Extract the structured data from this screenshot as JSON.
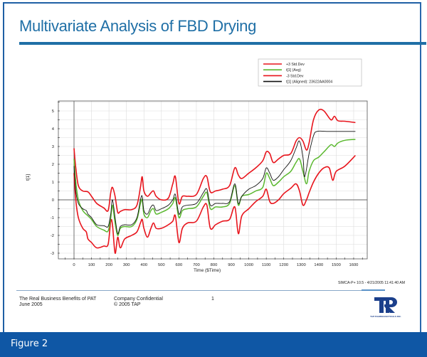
{
  "slide": {
    "title": "Multivariate Analysis of FBD Drying",
    "brand_color": "#1f6fa6"
  },
  "footer": {
    "left_line1": "The Real Business Benefits of PAT",
    "left_line2": "June 2005",
    "mid_line1": "Company Confidential",
    "mid_line2": "© 2005 TAP",
    "page_number": "1",
    "logo_text": "TAP",
    "logo_subtext": "TAP PHARMACEUTICALS INC.",
    "software_stamp": "SIMCA-P+ 10.5 - 4/21/2005 11:41:40 AM"
  },
  "figure_caption": "Figure 2",
  "chart_data": {
    "type": "line",
    "title": "",
    "xlabel": "Time ($Time)",
    "ylabel": "t[1]",
    "xlim": [
      -110,
      1660
    ],
    "ylim": [
      -3.3,
      5.5
    ],
    "xticks": [
      0,
      100,
      200,
      300,
      400,
      500,
      600,
      700,
      800,
      900,
      1000,
      1100,
      1200,
      1300,
      1400,
      1500,
      1600
    ],
    "yticks": [
      -3,
      -2,
      -1,
      0,
      1,
      2,
      3,
      4,
      5
    ],
    "grid": true,
    "legend_position": "top-right",
    "series": [
      {
        "name": "+3 Std.Dev",
        "color": "#e8141c",
        "points": [
          [
            0,
            2.9
          ],
          [
            10,
            1.8
          ],
          [
            25,
            0.8
          ],
          [
            50,
            0.5
          ],
          [
            80,
            0.45
          ],
          [
            100,
            0.2
          ],
          [
            130,
            -0.2
          ],
          [
            170,
            -0.45
          ],
          [
            195,
            -0.6
          ],
          [
            210,
            0.4
          ],
          [
            220,
            0.7
          ],
          [
            235,
            0.2
          ],
          [
            250,
            -0.7
          ],
          [
            265,
            -0.65
          ],
          [
            290,
            -0.55
          ],
          [
            330,
            -0.55
          ],
          [
            360,
            -0.3
          ],
          [
            380,
            0.7
          ],
          [
            390,
            1.3
          ],
          [
            400,
            0.5
          ],
          [
            420,
            0.2
          ],
          [
            440,
            0.4
          ],
          [
            455,
            0.5
          ],
          [
            470,
            0.2
          ],
          [
            500,
            0.0
          ],
          [
            540,
            0.1
          ],
          [
            565,
            0.9
          ],
          [
            580,
            1.3
          ],
          [
            600,
            -0.2
          ],
          [
            620,
            0.2
          ],
          [
            650,
            0.2
          ],
          [
            700,
            0.3
          ],
          [
            740,
            1.2
          ],
          [
            760,
            1.3
          ],
          [
            780,
            0.45
          ],
          [
            810,
            0.5
          ],
          [
            850,
            0.6
          ],
          [
            890,
            0.8
          ],
          [
            920,
            1.8
          ],
          [
            940,
            1.4
          ],
          [
            960,
            1.2
          ],
          [
            1000,
            1.5
          ],
          [
            1040,
            1.8
          ],
          [
            1080,
            2.2
          ],
          [
            1100,
            2.7
          ],
          [
            1120,
            2.6
          ],
          [
            1140,
            2.1
          ],
          [
            1170,
            2.3
          ],
          [
            1200,
            2.5
          ],
          [
            1240,
            2.6
          ],
          [
            1270,
            3.3
          ],
          [
            1290,
            3.5
          ],
          [
            1310,
            3.3
          ],
          [
            1330,
            2.8
          ],
          [
            1345,
            3.2
          ],
          [
            1370,
            4.5
          ],
          [
            1400,
            5.05
          ],
          [
            1430,
            5.0
          ],
          [
            1470,
            4.5
          ],
          [
            1490,
            4.7
          ],
          [
            1510,
            4.45
          ],
          [
            1550,
            4.42
          ],
          [
            1610,
            4.35
          ]
        ]
      },
      {
        "name": "t[1] (Avg)",
        "color": "#5ab82e",
        "points": [
          [
            0,
            2.3
          ],
          [
            10,
            1.0
          ],
          [
            25,
            0.0
          ],
          [
            50,
            -0.6
          ],
          [
            80,
            -0.9
          ],
          [
            100,
            -1.1
          ],
          [
            130,
            -1.5
          ],
          [
            170,
            -1.7
          ],
          [
            195,
            -1.75
          ],
          [
            210,
            -1.0
          ],
          [
            220,
            -0.3
          ],
          [
            235,
            -1.3
          ],
          [
            250,
            -2.0
          ],
          [
            265,
            -1.6
          ],
          [
            290,
            -1.5
          ],
          [
            330,
            -1.5
          ],
          [
            360,
            -1.1
          ],
          [
            380,
            -0.2
          ],
          [
            390,
            0.0
          ],
          [
            400,
            -0.8
          ],
          [
            420,
            -1.0
          ],
          [
            440,
            -0.6
          ],
          [
            455,
            -0.5
          ],
          [
            470,
            -0.8
          ],
          [
            500,
            -0.7
          ],
          [
            540,
            -0.5
          ],
          [
            565,
            -0.2
          ],
          [
            580,
            0.1
          ],
          [
            600,
            -1.0
          ],
          [
            620,
            -0.6
          ],
          [
            650,
            -0.5
          ],
          [
            700,
            -0.4
          ],
          [
            740,
            0.2
          ],
          [
            760,
            0.4
          ],
          [
            780,
            -0.5
          ],
          [
            810,
            -0.4
          ],
          [
            850,
            -0.4
          ],
          [
            890,
            -0.2
          ],
          [
            920,
            0.8
          ],
          [
            940,
            -0.3
          ],
          [
            960,
            0.2
          ],
          [
            1000,
            0.3
          ],
          [
            1040,
            0.5
          ],
          [
            1080,
            0.7
          ],
          [
            1100,
            1.5
          ],
          [
            1120,
            1.2
          ],
          [
            1140,
            0.8
          ],
          [
            1170,
            1.0
          ],
          [
            1200,
            1.3
          ],
          [
            1240,
            1.6
          ],
          [
            1270,
            2.1
          ],
          [
            1290,
            2.3
          ],
          [
            1310,
            1.6
          ],
          [
            1330,
            0.9
          ],
          [
            1345,
            1.6
          ],
          [
            1370,
            2.2
          ],
          [
            1400,
            2.4
          ],
          [
            1430,
            2.7
          ],
          [
            1470,
            3.1
          ],
          [
            1490,
            3.0
          ],
          [
            1510,
            3.2
          ],
          [
            1550,
            3.35
          ],
          [
            1610,
            3.4
          ]
        ]
      },
      {
        "name": "-3 Std.Dev",
        "color": "#e8141c",
        "points": [
          [
            0,
            1.5
          ],
          [
            10,
            0.0
          ],
          [
            25,
            -1.0
          ],
          [
            50,
            -1.6
          ],
          [
            70,
            -1.8
          ],
          [
            80,
            -2.2
          ],
          [
            100,
            -2.4
          ],
          [
            130,
            -2.7
          ],
          [
            170,
            -2.6
          ],
          [
            195,
            -2.5
          ],
          [
            210,
            -1.2
          ],
          [
            220,
            -1.4
          ],
          [
            235,
            -3.0
          ],
          [
            250,
            -2.1
          ],
          [
            265,
            -2.7
          ],
          [
            290,
            -2.2
          ],
          [
            330,
            -2.0
          ],
          [
            360,
            -1.8
          ],
          [
            380,
            -1.3
          ],
          [
            390,
            -1.1
          ],
          [
            400,
            -1.6
          ],
          [
            420,
            -2.1
          ],
          [
            440,
            -1.6
          ],
          [
            455,
            -1.3
          ],
          [
            470,
            -1.6
          ],
          [
            500,
            -1.6
          ],
          [
            540,
            -1.4
          ],
          [
            565,
            -1.2
          ],
          [
            580,
            -0.9
          ],
          [
            600,
            -2.4
          ],
          [
            620,
            -1.6
          ],
          [
            650,
            -1.3
          ],
          [
            700,
            -1.2
          ],
          [
            740,
            -0.4
          ],
          [
            760,
            -0.3
          ],
          [
            780,
            -1.6
          ],
          [
            810,
            -1.4
          ],
          [
            850,
            -1.2
          ],
          [
            890,
            -1.1
          ],
          [
            920,
            -0.4
          ],
          [
            940,
            -1.9
          ],
          [
            960,
            -0.9
          ],
          [
            1000,
            -0.5
          ],
          [
            1040,
            -0.1
          ],
          [
            1080,
            0.2
          ],
          [
            1100,
            0.6
          ],
          [
            1120,
            -0.1
          ],
          [
            1140,
            -0.2
          ],
          [
            1170,
            0.0
          ],
          [
            1200,
            0.35
          ],
          [
            1240,
            0.65
          ],
          [
            1270,
            0.9
          ],
          [
            1290,
            0.5
          ],
          [
            1310,
            -0.3
          ],
          [
            1330,
            0.0
          ],
          [
            1345,
            0.4
          ],
          [
            1370,
            1.0
          ],
          [
            1400,
            1.5
          ],
          [
            1430,
            1.8
          ],
          [
            1460,
            1.8
          ],
          [
            1480,
            1.1
          ],
          [
            1500,
            1.6
          ],
          [
            1550,
            1.9
          ],
          [
            1610,
            2.5
          ]
        ]
      },
      {
        "name": "t[1] (Aligned): 23622AA0004",
        "color": "#111111",
        "points": [
          [
            0,
            1.9
          ],
          [
            10,
            0.5
          ],
          [
            25,
            -0.2
          ],
          [
            50,
            -0.5
          ],
          [
            70,
            -0.6
          ],
          [
            80,
            -0.8
          ],
          [
            100,
            -1.0
          ],
          [
            130,
            -1.4
          ],
          [
            170,
            -1.45
          ],
          [
            195,
            -1.5
          ],
          [
            210,
            -0.8
          ],
          [
            220,
            0.0
          ],
          [
            235,
            -1.0
          ],
          [
            250,
            -1.9
          ],
          [
            265,
            -1.5
          ],
          [
            290,
            -1.4
          ],
          [
            330,
            -1.4
          ],
          [
            360,
            -1.0
          ],
          [
            380,
            0.0
          ],
          [
            390,
            0.2
          ],
          [
            400,
            -0.6
          ],
          [
            420,
            -0.8
          ],
          [
            440,
            -0.4
          ],
          [
            455,
            -0.3
          ],
          [
            470,
            -0.6
          ],
          [
            500,
            -0.5
          ],
          [
            540,
            -0.3
          ],
          [
            565,
            0.0
          ],
          [
            580,
            0.3
          ],
          [
            600,
            -0.8
          ],
          [
            620,
            -0.4
          ],
          [
            650,
            -0.3
          ],
          [
            700,
            -0.2
          ],
          [
            740,
            0.4
          ],
          [
            760,
            0.6
          ],
          [
            780,
            -0.3
          ],
          [
            810,
            -0.2
          ],
          [
            850,
            -0.2
          ],
          [
            890,
            -0.1
          ],
          [
            920,
            0.9
          ],
          [
            940,
            -0.2
          ],
          [
            960,
            0.2
          ],
          [
            1000,
            0.6
          ],
          [
            1040,
            0.8
          ],
          [
            1080,
            1.2
          ],
          [
            1100,
            1.8
          ],
          [
            1120,
            1.5
          ],
          [
            1140,
            1.1
          ],
          [
            1170,
            1.3
          ],
          [
            1200,
            1.7
          ],
          [
            1240,
            2.2
          ],
          [
            1270,
            2.9
          ],
          [
            1290,
            3.3
          ],
          [
            1310,
            2.4
          ],
          [
            1320,
            1.3
          ],
          [
            1345,
            2.6
          ],
          [
            1370,
            3.6
          ],
          [
            1390,
            3.85
          ],
          [
            1450,
            3.85
          ],
          [
            1500,
            3.85
          ],
          [
            1610,
            3.85
          ]
        ]
      }
    ]
  }
}
